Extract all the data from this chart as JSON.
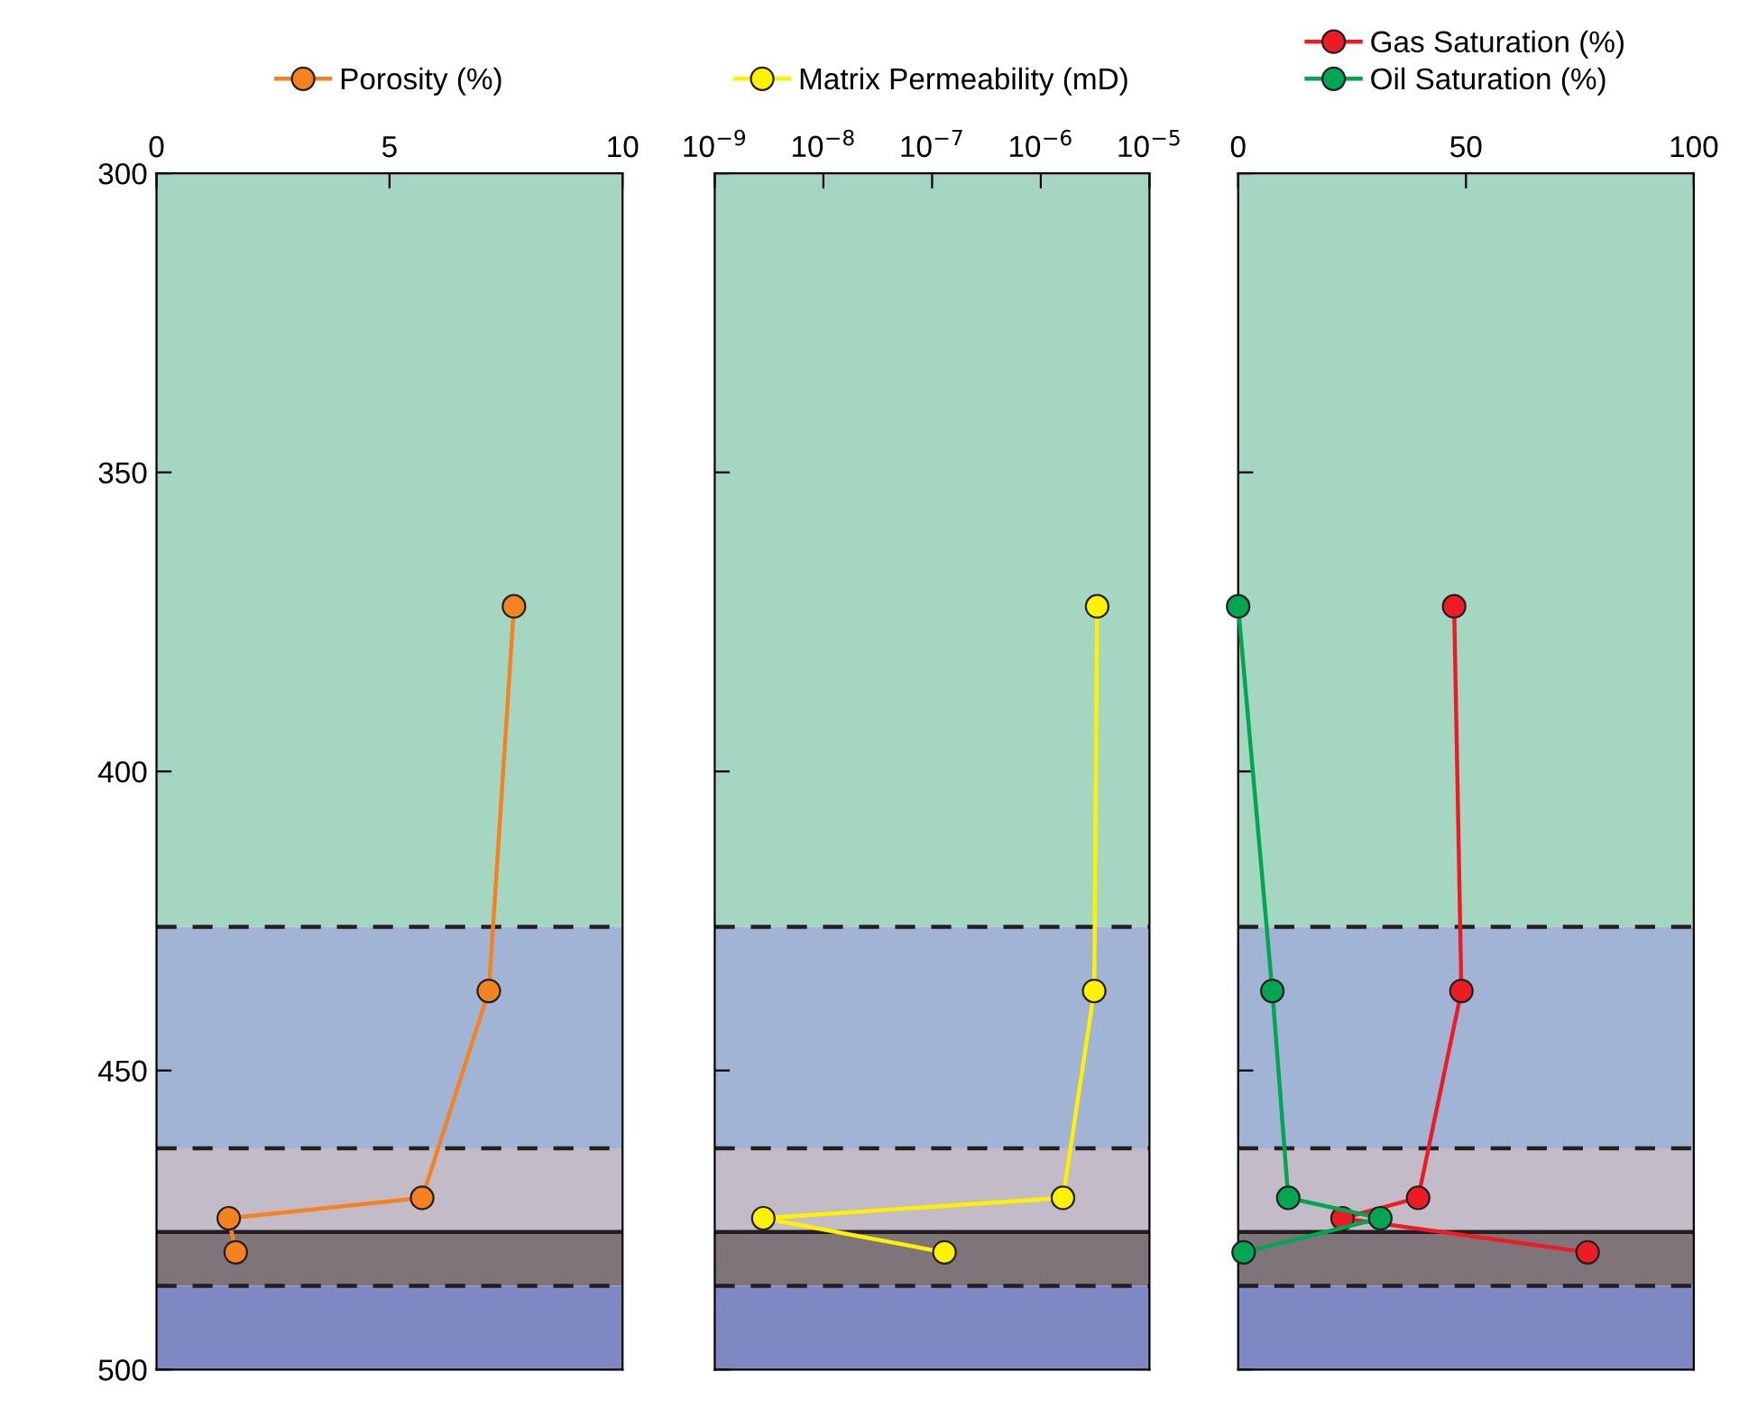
{
  "chart_data": [
    {
      "type": "line",
      "marker": "circle",
      "legend": "top",
      "tick_labels": "xy",
      "xlim": [
        0,
        10
      ],
      "xticks": [
        0,
        5,
        10
      ],
      "ylim": [
        500,
        300
      ],
      "yticks": [
        300,
        350,
        400,
        450,
        500
      ],
      "series": [
        {
          "name": "Porosity (%)",
          "color": "#f58220",
          "x": [
            7.67,
            7.13,
            5.7,
            1.55,
            1.7
          ],
          "values": [
            372.4,
            436.7,
            471.3,
            474.7,
            480.4
          ]
        }
      ],
      "bands": [
        {
          "axis": "y",
          "from": 300,
          "to": 426,
          "color": "#a5d6c1"
        },
        {
          "axis": "y",
          "from": 426,
          "to": 463,
          "color": "#a2b4d6"
        },
        {
          "axis": "y",
          "from": 463,
          "to": 477,
          "color": "#c3bcc8"
        },
        {
          "axis": "y",
          "from": 477,
          "to": 486,
          "color": "#7f7479"
        },
        {
          "axis": "y",
          "from": 486,
          "to": 500,
          "color": "#7f88c3"
        }
      ],
      "ref_lines": [
        {
          "axis": "y",
          "value": 426,
          "line_style": "dashed",
          "color": "#231f20"
        },
        {
          "axis": "y",
          "value": 463,
          "line_style": "dashed",
          "color": "#231f20"
        },
        {
          "axis": "y",
          "value": 477,
          "line_style": "solid",
          "color": "#231f20"
        },
        {
          "axis": "y",
          "value": 486,
          "line_style": "dashed",
          "color": "#231f20"
        }
      ]
    },
    {
      "type": "line",
      "marker": "circle",
      "legend": "top",
      "log": "x",
      "tick_labels": "x",
      "xlim": [
        1e-09,
        1e-05
      ],
      "xticks": [
        {
          "value": 1e-09,
          "label": "10$^{−9}$"
        },
        {
          "value": 1e-08,
          "label": "10$^{−8}$"
        },
        {
          "value": 1e-07,
          "label": "10$^{−7}$"
        },
        {
          "value": 1e-06,
          "label": "10$^{−6}$"
        },
        {
          "value": 1e-05,
          "label": "10$^{−5}$"
        }
      ],
      "ylim": [
        500,
        300
      ],
      "yticks": [
        300,
        350,
        400,
        450,
        500
      ],
      "series": [
        {
          "name": "Matrix Permeability (mD)",
          "color": "#fff200",
          "x": [
            3.3e-06,
            3.1e-06,
            1.6e-06,
            2.8e-09,
            1.3e-07
          ],
          "values": [
            372.4,
            436.7,
            471.3,
            474.7,
            480.4
          ]
        }
      ],
      "bands": [
        {
          "axis": "y",
          "from": 300,
          "to": 426,
          "color": "#a5d6c1"
        },
        {
          "axis": "y",
          "from": 426,
          "to": 463,
          "color": "#a2b4d6"
        },
        {
          "axis": "y",
          "from": 463,
          "to": 477,
          "color": "#c3bcc8"
        },
        {
          "axis": "y",
          "from": 477,
          "to": 486,
          "color": "#7f7479"
        },
        {
          "axis": "y",
          "from": 486,
          "to": 500,
          "color": "#7f88c3"
        }
      ],
      "ref_lines": [
        {
          "axis": "y",
          "value": 426,
          "line_style": "dashed",
          "color": "#231f20"
        },
        {
          "axis": "y",
          "value": 463,
          "line_style": "dashed",
          "color": "#231f20"
        },
        {
          "axis": "y",
          "value": 477,
          "line_style": "solid",
          "color": "#231f20"
        },
        {
          "axis": "y",
          "value": 486,
          "line_style": "dashed",
          "color": "#231f20"
        }
      ]
    },
    {
      "type": "line",
      "marker": "circle",
      "legend": "top",
      "tick_labels": "x",
      "xlim": [
        0,
        100
      ],
      "xticks": [
        0,
        50,
        100
      ],
      "ylim": [
        500,
        300
      ],
      "yticks": [
        300,
        350,
        400,
        450,
        500
      ],
      "series": [
        {
          "name": "Gas Saturation (%)",
          "color": "#ed1c24",
          "x": [
            47.4,
            49,
            39.5,
            22.9,
            76.7
          ],
          "values": [
            372.4,
            436.7,
            471.3,
            474.7,
            480.4
          ]
        },
        {
          "name": "Oil Saturation (%)",
          "color": "#00a651",
          "x": [
            0,
            7.5,
            11,
            31.2,
            1.2
          ],
          "values": [
            372.4,
            436.7,
            471.3,
            474.7,
            480.4
          ]
        }
      ],
      "bands": [
        {
          "axis": "y",
          "from": 300,
          "to": 426,
          "color": "#a5d6c1"
        },
        {
          "axis": "y",
          "from": 426,
          "to": 463,
          "color": "#a2b4d6"
        },
        {
          "axis": "y",
          "from": 463,
          "to": 477,
          "color": "#c3bcc8"
        },
        {
          "axis": "y",
          "from": 477,
          "to": 486,
          "color": "#7f7479"
        },
        {
          "axis": "y",
          "from": 486,
          "to": 500,
          "color": "#7f88c3"
        }
      ],
      "ref_lines": [
        {
          "axis": "y",
          "value": 426,
          "line_style": "dashed",
          "color": "#231f20"
        },
        {
          "axis": "y",
          "value": 463,
          "line_style": "dashed",
          "color": "#231f20"
        },
        {
          "axis": "y",
          "value": 477,
          "line_style": "solid",
          "color": "#231f20"
        },
        {
          "axis": "y",
          "value": 486,
          "line_style": "dashed",
          "color": "#231f20"
        }
      ]
    }
  ]
}
